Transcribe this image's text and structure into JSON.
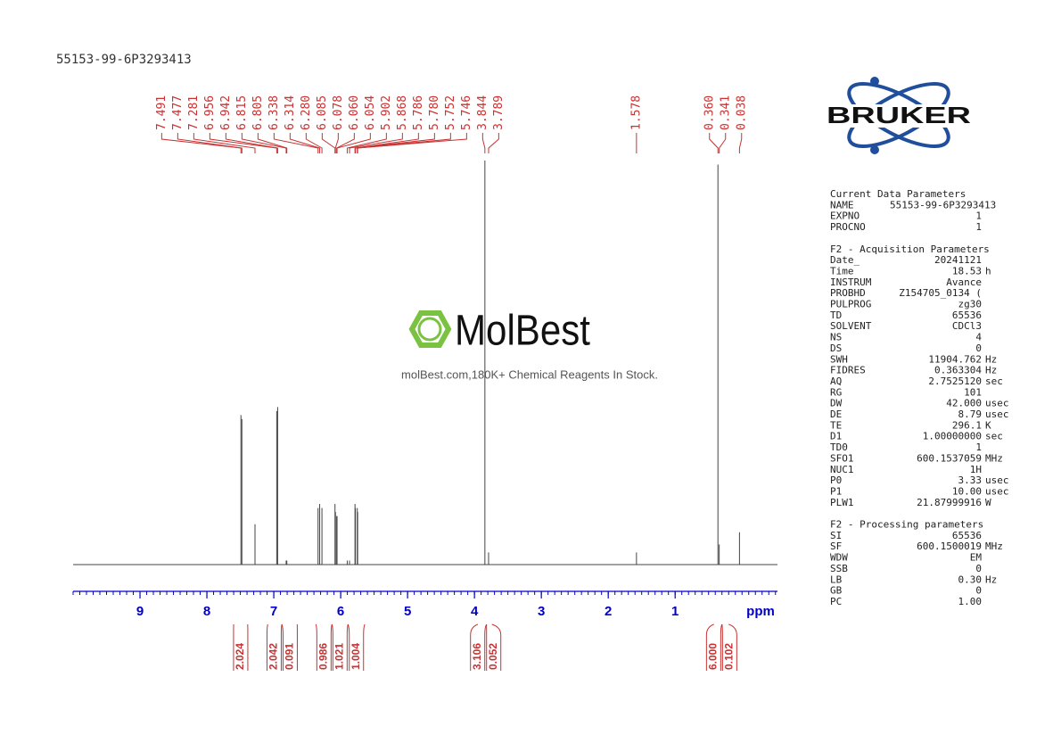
{
  "chart_data": {
    "type": "nmr",
    "title": "55153-99-6P3293413",
    "xlabel": "ppm",
    "xlim": [
      10,
      -0.53
    ],
    "xticks": [
      9,
      8,
      7,
      6,
      5,
      4,
      3,
      2,
      1
    ],
    "xminor_step": 0.1,
    "color": "#444444",
    "axis_color": "#0000c8",
    "label_color": "#c83232",
    "peaks": [
      {
        "ppm": 7.491,
        "height": 37
      },
      {
        "ppm": 7.477,
        "height": 36
      },
      {
        "ppm": 7.281,
        "height": 10
      },
      {
        "ppm": 6.956,
        "height": 38
      },
      {
        "ppm": 6.942,
        "height": 39
      },
      {
        "ppm": 6.815,
        "height": 1
      },
      {
        "ppm": 6.805,
        "height": 1
      },
      {
        "ppm": 6.338,
        "height": 14
      },
      {
        "ppm": 6.314,
        "height": 15
      },
      {
        "ppm": 6.28,
        "label": "6.280",
        "height": 14
      },
      {
        "ppm": 6.085,
        "height": 15
      },
      {
        "ppm": 6.078,
        "height": 13
      },
      {
        "ppm": 6.06,
        "label": "6.060",
        "height": 12
      },
      {
        "ppm": 6.054,
        "height": 12
      },
      {
        "ppm": 5.902,
        "height": 1
      },
      {
        "ppm": 5.868,
        "height": 1
      },
      {
        "ppm": 5.786,
        "height": 15
      },
      {
        "ppm": 5.78,
        "label": "5.780",
        "height": 14
      },
      {
        "ppm": 5.752,
        "height": 14
      },
      {
        "ppm": 5.746,
        "height": 13
      },
      {
        "ppm": 3.844,
        "height": 100
      },
      {
        "ppm": 3.789,
        "height": 3
      },
      {
        "ppm": 1.578,
        "height": 3
      },
      {
        "ppm": 0.36,
        "label": "0.360",
        "height": 99
      },
      {
        "ppm": 0.341,
        "height": 5
      },
      {
        "ppm": 0.038,
        "height": 8
      }
    ],
    "integrals": [
      {
        "from": 7.6,
        "to": 7.39,
        "value": 2.024
      },
      {
        "from": 7.09,
        "to": 6.88,
        "value": 2.042
      },
      {
        "from": 6.88,
        "to": 6.65,
        "value": 0.091
      },
      {
        "from": 6.37,
        "to": 6.13,
        "value": 0.986
      },
      {
        "from": 6.13,
        "to": 5.89,
        "value": 1.021
      },
      {
        "from": 5.89,
        "to": 5.64,
        "value": 1.004
      },
      {
        "from": 3.95,
        "to": 3.82,
        "value": 3.106
      },
      {
        "from": 3.82,
        "to": 3.74,
        "value": 0.052
      },
      {
        "from": 0.42,
        "to": 0.3,
        "value": 6.0,
        "label": "6.000"
      },
      {
        "from": 0.3,
        "to": 0.2,
        "value": 0.102
      }
    ]
  },
  "watermark": {
    "brand": "MolBest",
    "tagline": "molBest.com,180K+ Chemical Reagents In Stock."
  },
  "logo": {
    "text": "BRUKER"
  },
  "parameters": [
    {
      "title": "Current Data Parameters",
      "rows": [
        [
          "NAME",
          "55153-99-6P3293413"
        ],
        [
          "EXPNO",
          "1"
        ],
        [
          "PROCNO",
          "1"
        ]
      ]
    },
    {
      "title": "F2 - Acquisition Parameters",
      "rows": [
        [
          "Date_",
          "20241121"
        ],
        [
          "Time",
          "18.53",
          "h"
        ],
        [
          "INSTRUM",
          "Avance"
        ],
        [
          "PROBHD",
          "Z154705_0134 ("
        ],
        [
          "PULPROG",
          "zg30"
        ],
        [
          "TD",
          "65536"
        ],
        [
          "SOLVENT",
          "CDCl3"
        ],
        [
          "NS",
          "4"
        ],
        [
          "DS",
          "0"
        ],
        [
          "SWH",
          "11904.762",
          "Hz"
        ],
        [
          "FIDRES",
          "0.363304",
          "Hz"
        ],
        [
          "AQ",
          "2.7525120",
          "sec"
        ],
        [
          "RG",
          "101"
        ],
        [
          "DW",
          "42.000",
          "usec"
        ],
        [
          "DE",
          "8.79",
          "usec"
        ],
        [
          "TE",
          "296.1",
          "K"
        ],
        [
          "D1",
          "1.00000000",
          "sec"
        ],
        [
          "TD0",
          "1"
        ],
        [
          "SFO1",
          "600.1537059",
          "MHz"
        ],
        [
          "NUC1",
          "1H"
        ],
        [
          "P0",
          "3.33",
          "usec"
        ],
        [
          "P1",
          "10.00",
          "usec"
        ],
        [
          "PLW1",
          "21.87999916",
          "W"
        ]
      ]
    },
    {
      "title": "F2 - Processing parameters",
      "rows": [
        [
          "SI",
          "65536"
        ],
        [
          "SF",
          "600.1500019",
          "MHz"
        ],
        [
          "WDW",
          "EM"
        ],
        [
          "SSB",
          "0"
        ],
        [
          "LB",
          "0.30",
          "Hz"
        ],
        [
          "GB",
          "0"
        ],
        [
          "PC",
          "1.00"
        ]
      ]
    }
  ]
}
